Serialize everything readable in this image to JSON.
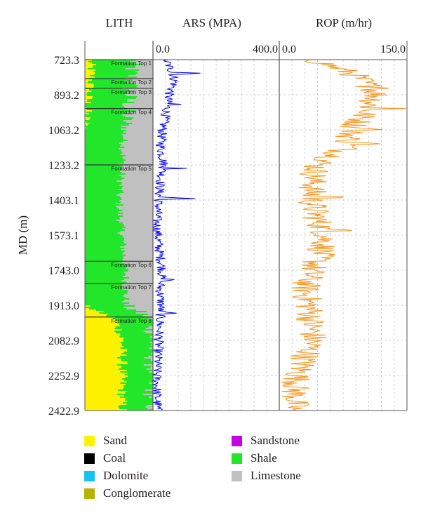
{
  "chart_data": {
    "type": "well-log",
    "y_axis": {
      "label": "MD (m)",
      "range": [
        723.3,
        2422.9
      ],
      "ticks": [
        "723.3",
        "893.2",
        "1063.2",
        "1233.2",
        "1403.1",
        "1573.1",
        "1743.0",
        "1913.0",
        "2082.9",
        "2252.9",
        "2422.9"
      ]
    },
    "tracks": [
      {
        "name": "LITH",
        "type": "lithology",
        "components": [
          "Sand",
          "Shale",
          "Limestone"
        ],
        "profile": [
          {
            "md": 723.3,
            "sand": 0.08,
            "shale": 0.62,
            "limestone": 0.3
          },
          {
            "md": 800,
            "sand": 0.1,
            "shale": 0.58,
            "limestone": 0.32
          },
          {
            "md": 893.2,
            "sand": 0.05,
            "shale": 0.6,
            "limestone": 0.35
          },
          {
            "md": 1063.2,
            "sand": 0.0,
            "shale": 0.58,
            "limestone": 0.42
          },
          {
            "md": 1233.2,
            "sand": 0.0,
            "shale": 0.55,
            "limestone": 0.45
          },
          {
            "md": 1403.1,
            "sand": 0.0,
            "shale": 0.5,
            "limestone": 0.5
          },
          {
            "md": 1573.1,
            "sand": 0.0,
            "shale": 0.55,
            "limestone": 0.45
          },
          {
            "md": 1743.0,
            "sand": 0.0,
            "shale": 0.6,
            "limestone": 0.4
          },
          {
            "md": 1913.0,
            "sand": 0.0,
            "shale": 0.6,
            "limestone": 0.4
          },
          {
            "md": 1975,
            "sand": 0.45,
            "shale": 0.55,
            "limestone": 0.0
          },
          {
            "md": 2082.9,
            "sand": 0.55,
            "shale": 0.45,
            "limestone": 0.0
          },
          {
            "md": 2252.9,
            "sand": 0.55,
            "shale": 0.45,
            "limestone": 0.0
          },
          {
            "md": 2422.9,
            "sand": 0.55,
            "shale": 0.45,
            "limestone": 0.0
          }
        ],
        "formation_tops": [
          {
            "name": "Formation Top 1",
            "md": 723.3
          },
          {
            "name": "Formation Top 2",
            "md": 815
          },
          {
            "name": "Formation Top 3",
            "md": 862
          },
          {
            "name": "Formation Top 4",
            "md": 960
          },
          {
            "name": "Formation Top 5",
            "md": 1233.2
          },
          {
            "name": "Formation Top 6",
            "md": 1700
          },
          {
            "name": "Formation Top 7",
            "md": 1808
          },
          {
            "name": "Formation Top 8",
            "md": 1970
          }
        ]
      },
      {
        "name": "ARS (MPA)",
        "type": "curve",
        "scale_min": "0.0",
        "scale_max": "400.0",
        "range": [
          0,
          400
        ],
        "color": "#0000ff",
        "profile": [
          {
            "md": 723.3,
            "value": 40
          },
          {
            "md": 780,
            "value": 60
          },
          {
            "md": 830,
            "value": 70
          },
          {
            "md": 893.2,
            "value": 50
          },
          {
            "md": 960,
            "value": 45
          },
          {
            "md": 1063.2,
            "value": 30
          },
          {
            "md": 1150,
            "value": 25
          },
          {
            "md": 1233.2,
            "value": 35
          },
          {
            "md": 1300,
            "value": 25
          },
          {
            "md": 1403.1,
            "value": 18
          },
          {
            "md": 1500,
            "value": 12
          },
          {
            "md": 1573.1,
            "value": 15
          },
          {
            "md": 1650,
            "value": 20
          },
          {
            "md": 1743.0,
            "value": 30
          },
          {
            "md": 1830,
            "value": 22
          },
          {
            "md": 1913.0,
            "value": 25
          },
          {
            "md": 2000,
            "value": 22
          },
          {
            "md": 2082.9,
            "value": 18
          },
          {
            "md": 2170,
            "value": 15
          },
          {
            "md": 2252.9,
            "value": 12
          },
          {
            "md": 2330,
            "value": 12
          },
          {
            "md": 2422.9,
            "value": 15
          }
        ],
        "spikes": [
          {
            "md": 790,
            "value": 200
          },
          {
            "md": 940,
            "value": 95
          },
          {
            "md": 1250,
            "value": 120
          },
          {
            "md": 1395,
            "value": 190
          },
          {
            "md": 1790,
            "value": 100
          },
          {
            "md": 1950,
            "value": 90
          }
        ]
      },
      {
        "name": "ROP (m/hr)",
        "type": "curve",
        "scale_min": "0.0",
        "scale_max": "150.0",
        "range": [
          0,
          150
        ],
        "color": "#f7941d",
        "profile": [
          {
            "md": 723.3,
            "value": 40
          },
          {
            "md": 790,
            "value": 85
          },
          {
            "md": 860,
            "value": 110
          },
          {
            "md": 893.2,
            "value": 115
          },
          {
            "md": 960,
            "value": 105
          },
          {
            "md": 1063.2,
            "value": 85
          },
          {
            "md": 1150,
            "value": 80
          },
          {
            "md": 1233.2,
            "value": 45
          },
          {
            "md": 1300,
            "value": 40
          },
          {
            "md": 1403.1,
            "value": 38
          },
          {
            "md": 1500,
            "value": 45
          },
          {
            "md": 1573.1,
            "value": 55
          },
          {
            "md": 1650,
            "value": 50
          },
          {
            "md": 1743.0,
            "value": 38
          },
          {
            "md": 1830,
            "value": 30
          },
          {
            "md": 1913.0,
            "value": 35
          },
          {
            "md": 2000,
            "value": 38
          },
          {
            "md": 2082.9,
            "value": 40
          },
          {
            "md": 2170,
            "value": 30
          },
          {
            "md": 2252.9,
            "value": 22
          },
          {
            "md": 2330,
            "value": 18
          },
          {
            "md": 2422.9,
            "value": 18
          }
        ],
        "spikes": [
          {
            "md": 860,
            "value": 148
          },
          {
            "md": 960,
            "value": 150
          },
          {
            "md": 1060,
            "value": 150
          },
          {
            "md": 1130,
            "value": 140
          },
          {
            "md": 1390,
            "value": 110
          },
          {
            "md": 1550,
            "value": 100
          }
        ]
      }
    ],
    "legend": [
      {
        "label": "Sand",
        "color": "#fff200"
      },
      {
        "label": "Sandstone",
        "color": "#c800e6"
      },
      {
        "label": "Coal",
        "color": "#000000"
      },
      {
        "label": "Shale",
        "color": "#22e62a"
      },
      {
        "label": "Dolomite",
        "color": "#15c3f0"
      },
      {
        "label": "Limestone",
        "color": "#c0c0c0"
      },
      {
        "label": "Conglomerate",
        "color": "#b4b400"
      }
    ],
    "legend_placement": "bottom"
  }
}
